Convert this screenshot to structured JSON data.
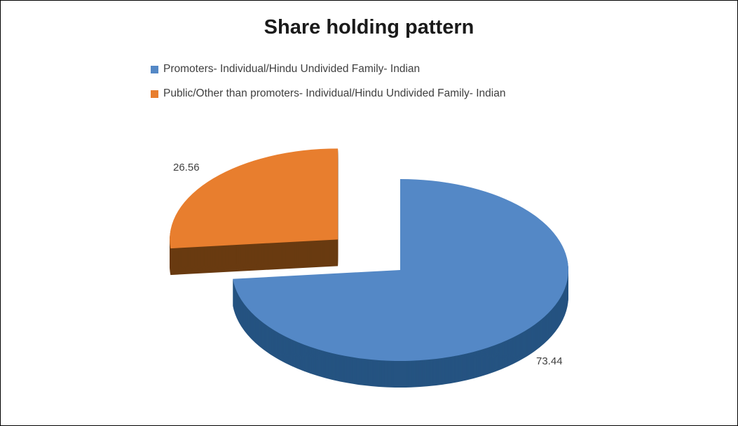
{
  "page": {
    "background": "#ffffff",
    "border_color": "#000000"
  },
  "chart_data": {
    "type": "pie",
    "title": "Share holding pattern",
    "effect": "3d-exploded-pie",
    "legend_position": "top-left",
    "total": 100,
    "series": [
      {
        "name": "Promoters- Individual/Hindu Undivided Family- Indian",
        "value": 73.44,
        "label": "73.44",
        "color": "#5488c6",
        "side_color": "#255381",
        "exploded": false
      },
      {
        "name": "Public/Other than promoters- Individual/Hindu Undivided Family- Indian",
        "value": 26.56,
        "label": "26.56",
        "color": "#e87e2e",
        "side_color": "#693a10",
        "exploded": true
      }
    ]
  }
}
